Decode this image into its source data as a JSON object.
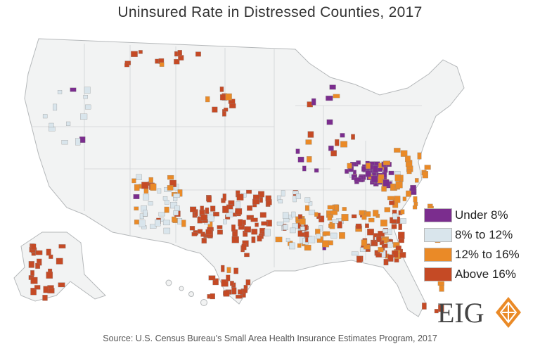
{
  "title": "Uninsured Rate in Distressed Counties, 2017",
  "legend": [
    {
      "label": "Under 8%",
      "color": "#7b2d8e"
    },
    {
      "label": "8% to 12%",
      "color": "#d9e5ec"
    },
    {
      "label": "12% to 16%",
      "color": "#ea8a27"
    },
    {
      "label": "Above 16%",
      "color": "#c54a25"
    }
  ],
  "logo": {
    "text": "EIG",
    "accent": "#ea8a27"
  },
  "source": "Source: U.S. Census Bureau's Small Area Health Insurance Estimates Program, 2017",
  "colors": {
    "land": "#f2f3f3",
    "border": "#b5b8ba"
  }
}
